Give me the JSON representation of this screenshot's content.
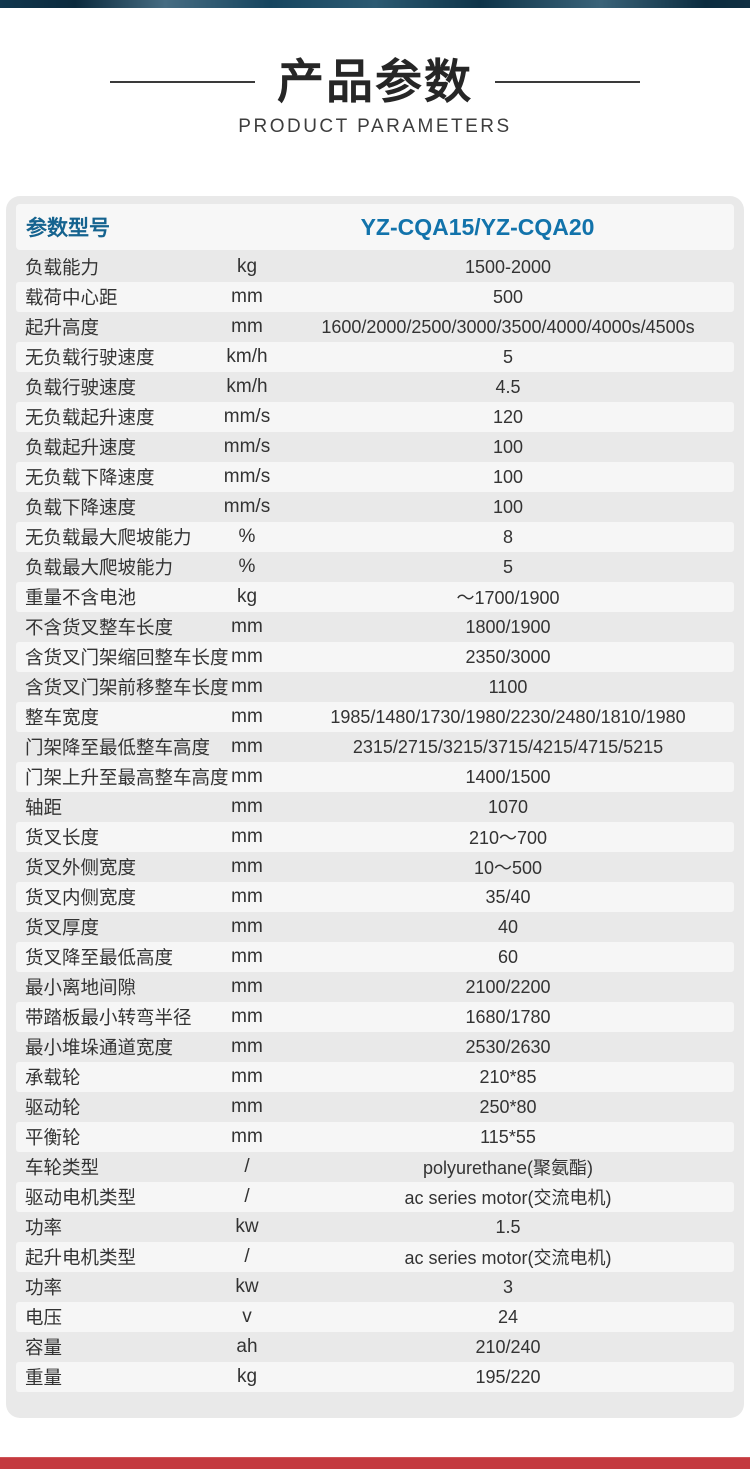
{
  "colors": {
    "topbar_navy": "#0d3146",
    "header_label_blue": "#15638f",
    "model_blue": "#1273ab",
    "panel_gray": "#e9e9e9",
    "stripe_light": "#f6f6f6",
    "text_dark": "#333333",
    "bottom_bar_red": "#c43a3f"
  },
  "title": {
    "cn": "产品参数",
    "en": "PRODUCT PARAMETERS"
  },
  "table": {
    "param_header_label": "参数型号",
    "model": "YZ-CQA15/YZ-CQA20",
    "rows": [
      {
        "label": "负载能力",
        "unit": "kg",
        "value": "1500-2000"
      },
      {
        "label": "载荷中心距",
        "unit": "mm",
        "value": "500"
      },
      {
        "label": "起升高度",
        "unit": "mm",
        "value": "1600/2000/2500/3000/3500/4000/4000s/4500s"
      },
      {
        "label": "无负载行驶速度",
        "unit": "km/h",
        "value": "5"
      },
      {
        "label": "负载行驶速度",
        "unit": "km/h",
        "value": "4.5"
      },
      {
        "label": "无负载起升速度",
        "unit": "mm/s",
        "value": "120"
      },
      {
        "label": "负载起升速度",
        "unit": "mm/s",
        "value": "100"
      },
      {
        "label": "无负载下降速度",
        "unit": "mm/s",
        "value": "100"
      },
      {
        "label": "负载下降速度",
        "unit": "mm/s",
        "value": "100"
      },
      {
        "label": "无负载最大爬坡能力",
        "unit": "%",
        "value": "8"
      },
      {
        "label": "负载最大爬坡能力",
        "unit": "%",
        "value": "5"
      },
      {
        "label": "重量不含电池",
        "unit": "kg",
        "value": "～1700/1900"
      },
      {
        "label": "不含货叉整车长度",
        "unit": "mm",
        "value": "1800/1900"
      },
      {
        "label": "含货叉门架缩回整车长度",
        "unit": "mm",
        "value": "2350/3000"
      },
      {
        "label": "含货叉门架前移整车长度",
        "unit": "mm",
        "value": "1100"
      },
      {
        "label": "整车宽度",
        "unit": "mm",
        "value": "1985/1480/1730/1980/2230/2480/1810/1980"
      },
      {
        "label": "门架降至最低整车高度",
        "unit": "mm",
        "value": "2315/2715/3215/3715/4215/4715/5215"
      },
      {
        "label": "门架上升至最高整车高度",
        "unit": "mm",
        "value": "1400/1500"
      },
      {
        "label": "轴距",
        "unit": "mm",
        "value": "1070"
      },
      {
        "label": "货叉长度",
        "unit": "mm",
        "value": "210～700"
      },
      {
        "label": "货叉外侧宽度",
        "unit": "mm",
        "value": "10～500"
      },
      {
        "label": "货叉内侧宽度",
        "unit": "mm",
        "value": "35/40"
      },
      {
        "label": "货叉厚度",
        "unit": "mm",
        "value": "40"
      },
      {
        "label": "货叉降至最低高度",
        "unit": "mm",
        "value": "60"
      },
      {
        "label": "最小离地间隙",
        "unit": "mm",
        "value": "2100/2200"
      },
      {
        "label": "带踏板最小转弯半径",
        "unit": "mm",
        "value": "1680/1780"
      },
      {
        "label": "最小堆垛通道宽度",
        "unit": "mm",
        "value": "2530/2630"
      },
      {
        "label": "承载轮",
        "unit": "mm",
        "value": "210*85"
      },
      {
        "label": "驱动轮",
        "unit": "mm",
        "value": "250*80"
      },
      {
        "label": "平衡轮",
        "unit": "mm",
        "value": "115*55"
      },
      {
        "label": "车轮类型",
        "unit": "/",
        "value": "polyurethane(聚氨酯)"
      },
      {
        "label": "驱动电机类型",
        "unit": "/",
        "value": "ac series motor(交流电机)"
      },
      {
        "label": "功率",
        "unit": "kw",
        "value": "1.5"
      },
      {
        "label": "起升电机类型",
        "unit": "/",
        "value": "ac series motor(交流电机)"
      },
      {
        "label": "功率",
        "unit": "kw",
        "value": "3"
      },
      {
        "label": "电压",
        "unit": "v",
        "value": "24"
      },
      {
        "label": "容量",
        "unit": "ah",
        "value": "210/240"
      },
      {
        "label": "重量",
        "unit": "kg",
        "value": "195/220"
      }
    ]
  }
}
